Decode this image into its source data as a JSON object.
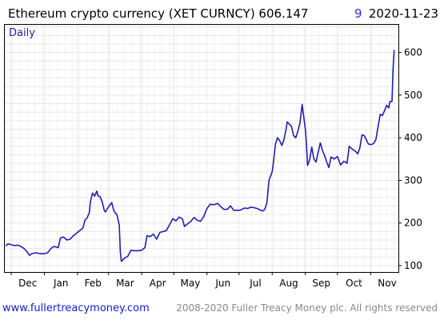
{
  "header": {
    "title": "Ethereum crypto currency  (XET CURNCY) 606.147",
    "change_fragment": "9",
    "date": "2020-11-23"
  },
  "frequency_label": "Daily",
  "footer": {
    "url": "www.fullertreacymoney.com",
    "copyright": "2008-2020 Fuller Treacy Money plc. All rights reserved"
  },
  "colors": {
    "line": "#1f1fb4",
    "grid": "#e6e6e6",
    "axis": "#000000",
    "link": "#1a1acc"
  },
  "chart_data": {
    "type": "line",
    "title": "Ethereum crypto currency  (XET CURNCY) 606.147",
    "xlabel": "",
    "ylabel": "",
    "ylim": [
      85,
      665
    ],
    "y_ticks": [
      100,
      200,
      300,
      400,
      500,
      600
    ],
    "y_tick_labels": [
      "100",
      "200",
      "300",
      "400",
      "500",
      "600"
    ],
    "x_tick_labels": [
      "Dec",
      "Jan",
      "Feb",
      "Mar",
      "Apr",
      "May",
      "Jun",
      "Jul",
      "Aug",
      "Sep",
      "Oct",
      "Nov"
    ],
    "x_ticks": [
      "2019-12-01",
      "2020-01-01",
      "2020-02-01",
      "2020-03-01",
      "2020-04-01",
      "2020-05-01",
      "2020-06-01",
      "2020-07-01",
      "2020-08-01",
      "2020-09-01",
      "2020-10-01",
      "2020-11-01"
    ],
    "xlim": [
      "2019-11-25",
      "2020-11-27"
    ],
    "grid": true,
    "y_axis_position": "right",
    "series": [
      {
        "x": [
          "2019-11-26",
          "2019-11-28",
          "2019-12-01",
          "2019-12-04",
          "2019-12-07",
          "2019-12-10",
          "2019-12-13",
          "2019-12-16",
          "2019-12-18",
          "2019-12-20",
          "2019-12-24",
          "2019-12-28",
          "2020-01-01",
          "2020-01-04",
          "2020-01-07",
          "2020-01-10",
          "2020-01-14",
          "2020-01-16",
          "2020-01-19",
          "2020-01-22",
          "2020-01-25",
          "2020-01-28",
          "2020-01-31",
          "2020-02-03",
          "2020-02-06",
          "2020-02-08",
          "2020-02-10",
          "2020-02-12",
          "2020-02-13",
          "2020-02-15",
          "2020-02-17",
          "2020-02-19",
          "2020-02-20",
          "2020-02-22",
          "2020-02-24",
          "2020-02-26",
          "2020-02-27",
          "2020-03-01",
          "2020-03-04",
          "2020-03-06",
          "2020-03-08",
          "2020-03-09",
          "2020-03-11",
          "2020-03-12",
          "2020-03-13",
          "2020-03-16",
          "2020-03-19",
          "2020-03-22",
          "2020-03-25",
          "2020-03-28",
          "2020-04-01",
          "2020-04-04",
          "2020-04-06",
          "2020-04-09",
          "2020-04-12",
          "2020-04-15",
          "2020-04-18",
          "2020-04-21",
          "2020-04-24",
          "2020-04-27",
          "2020-04-30",
          "2020-05-03",
          "2020-05-06",
          "2020-05-09",
          "2020-05-11",
          "2020-05-14",
          "2020-05-17",
          "2020-05-20",
          "2020-05-23",
          "2020-05-26",
          "2020-05-29",
          "2020-06-01",
          "2020-06-04",
          "2020-06-08",
          "2020-06-11",
          "2020-06-14",
          "2020-06-17",
          "2020-06-20",
          "2020-06-23",
          "2020-06-26",
          "2020-06-29",
          "2020-07-02",
          "2020-07-06",
          "2020-07-09",
          "2020-07-12",
          "2020-07-15",
          "2020-07-18",
          "2020-07-21",
          "2020-07-23",
          "2020-07-25",
          "2020-07-27",
          "2020-07-29",
          "2020-08-01",
          "2020-08-02",
          "2020-08-04",
          "2020-08-06",
          "2020-08-08",
          "2020-08-10",
          "2020-08-12",
          "2020-08-14",
          "2020-08-15",
          "2020-08-17",
          "2020-08-19",
          "2020-08-21",
          "2020-08-23",
          "2020-08-25",
          "2020-08-27",
          "2020-08-29",
          "2020-08-31",
          "2020-09-01",
          "2020-09-02",
          "2020-09-03",
          "2020-09-05",
          "2020-09-07",
          "2020-09-09",
          "2020-09-11",
          "2020-09-13",
          "2020-09-15",
          "2020-09-17",
          "2020-09-19",
          "2020-09-21",
          "2020-09-23",
          "2020-09-25",
          "2020-09-28",
          "2020-10-01",
          "2020-10-04",
          "2020-10-07",
          "2020-10-10",
          "2020-10-12",
          "2020-10-15",
          "2020-10-18",
          "2020-10-20",
          "2020-10-22",
          "2020-10-24",
          "2020-10-26",
          "2020-10-28",
          "2020-10-30",
          "2020-11-02",
          "2020-11-04",
          "2020-11-06",
          "2020-11-08",
          "2020-11-10",
          "2020-11-12",
          "2020-11-14",
          "2020-11-16",
          "2020-11-18",
          "2020-11-19",
          "2020-11-21",
          "2020-11-22",
          "2020-11-23"
        ],
        "y": [
          146,
          151,
          149,
          147,
          148,
          145,
          140,
          132,
          124,
          128,
          130,
          128,
          128,
          130,
          140,
          145,
          142,
          165,
          167,
          160,
          162,
          170,
          176,
          182,
          188,
          207,
          212,
          224,
          250,
          270,
          263,
          275,
          264,
          262,
          250,
          230,
          226,
          238,
          248,
          228,
          222,
          218,
          195,
          132,
          110,
          118,
          122,
          136,
          135,
          135,
          136,
          142,
          170,
          168,
          174,
          162,
          178,
          180,
          182,
          196,
          210,
          205,
          214,
          210,
          192,
          198,
          204,
          213,
          206,
          204,
          215,
          234,
          244,
          243,
          246,
          238,
          232,
          232,
          240,
          230,
          230,
          230,
          235,
          234,
          237,
          236,
          234,
          230,
          228,
          232,
          247,
          300,
          320,
          339,
          385,
          400,
          393,
          382,
          395,
          420,
          437,
          432,
          427,
          405,
          400,
          415,
          435,
          478,
          440,
          420,
          388,
          335,
          348,
          378,
          350,
          343,
          366,
          388,
          370,
          358,
          343,
          330,
          355,
          350,
          356,
          336,
          345,
          340,
          380,
          373,
          368,
          362,
          377,
          407,
          405,
          395,
          385,
          384,
          387,
          396,
          426,
          455,
          452,
          463,
          476,
          470,
          485,
          485,
          560,
          606
        ]
      }
    ]
  }
}
